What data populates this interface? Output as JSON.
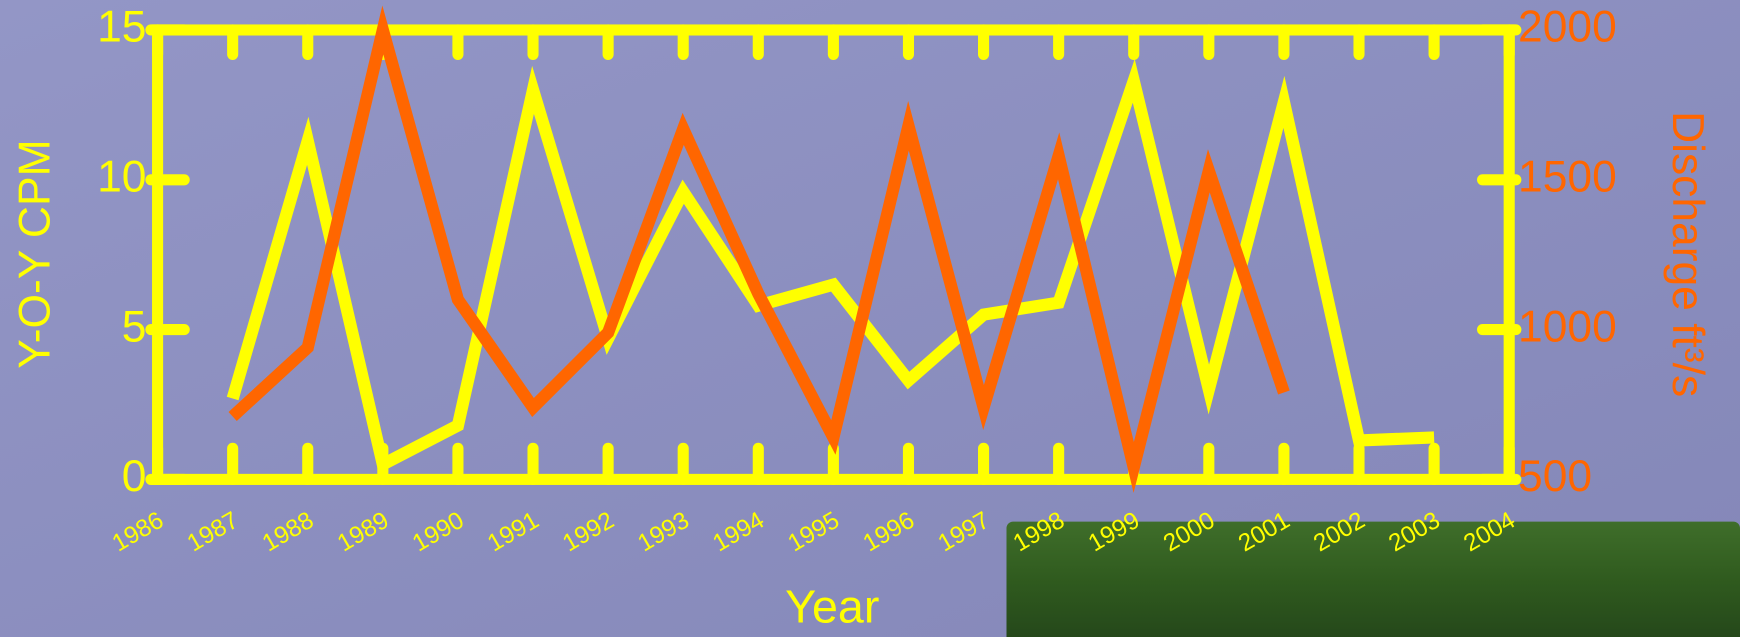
{
  "chart_data": {
    "type": "line",
    "x_label": "Year",
    "y_label": "Y-O-Y CPM",
    "y2_label": "Discharge ft³/s",
    "x": [
      1987,
      1988,
      1989,
      1990,
      1991,
      1992,
      1993,
      1994,
      1995,
      1996,
      1997,
      1998,
      1999,
      2000,
      2001,
      2002,
      2003
    ],
    "series": [
      {
        "name": "Y-O-Y CPM",
        "color": "#ffff00",
        "values": [
          2.7,
          11.3,
          0.5,
          1.8,
          13.0,
          4.7,
          9.6,
          5.8,
          6.5,
          3.3,
          5.5,
          5.9,
          13.3,
          3.0,
          12.6,
          1.3,
          1.4
        ]
      },
      {
        "name": "Discharge",
        "color": "#ff6600",
        "axis": "y2",
        "values": [
          710,
          940,
          2000,
          1100,
          740,
          990,
          1670,
          1120,
          640,
          1680,
          740,
          1580,
          540,
          1530,
          790,
          null,
          null
        ]
      }
    ],
    "xlim": [
      1986,
      2004
    ],
    "xticks": [
      1986,
      1987,
      1988,
      1989,
      1990,
      1991,
      1992,
      1993,
      1994,
      1995,
      1996,
      1997,
      1998,
      1999,
      2000,
      2001,
      2002,
      2003,
      2004
    ],
    "ylim": [
      0,
      15
    ],
    "yticks": [
      0,
      5,
      10,
      15
    ],
    "y2lim": [
      500,
      2000
    ],
    "y2ticks": [
      500,
      1000,
      1500,
      2000
    ],
    "axis_color": "#ffff00",
    "y2_color": "#ff6600"
  }
}
